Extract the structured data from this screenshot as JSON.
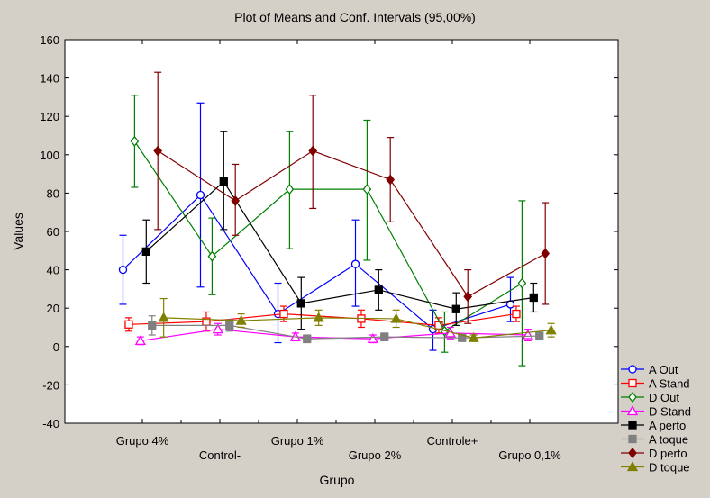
{
  "chart_data": {
    "type": "line",
    "title": "Plot of Means and Conf. Intervals (95,00%)",
    "xlabel": "Grupo",
    "ylabel": "Values",
    "ylim": [
      -40,
      160
    ],
    "yticks": [
      -40,
      -20,
      0,
      20,
      40,
      60,
      80,
      100,
      120,
      140,
      160
    ],
    "categories": [
      "Grupo 4%",
      "Control-",
      "Grupo 1%",
      "Grupo 2%",
      "Controle+",
      "Grupo 0,1%"
    ],
    "legend_position": "bottom-right",
    "grid": false,
    "series": [
      {
        "name": "A Out",
        "color": "#0000ff",
        "marker": "circle-open",
        "offset": -0.5,
        "values": [
          40,
          79,
          17,
          43,
          9,
          22
        ],
        "lower": [
          22,
          31,
          2,
          21,
          -2,
          13
        ],
        "upper": [
          58,
          127,
          33,
          66,
          19,
          36
        ]
      },
      {
        "name": "A Stand",
        "color": "#ff0000",
        "marker": "square-open",
        "offset": -0.35,
        "values": [
          11.5,
          13,
          17,
          14.5,
          11,
          17
        ],
        "lower": [
          8,
          8,
          13,
          10,
          7,
          13
        ],
        "upper": [
          15,
          18,
          21,
          19,
          15,
          21
        ]
      },
      {
        "name": "D Out",
        "color": "#008000",
        "marker": "diamond-open",
        "offset": -0.2,
        "values": [
          107,
          47,
          82,
          82,
          8,
          33
        ],
        "lower": [
          83,
          27,
          51,
          45,
          -3,
          -10
        ],
        "upper": [
          131,
          67,
          112,
          118,
          18,
          76
        ]
      },
      {
        "name": "D Stand",
        "color": "#ff00ff",
        "marker": "triangle-open",
        "offset": -0.05,
        "values": [
          3,
          9,
          5,
          4,
          7,
          6
        ],
        "lower": [
          1,
          6,
          3,
          2,
          4,
          3
        ],
        "upper": [
          5,
          12,
          7,
          6,
          10,
          9
        ]
      },
      {
        "name": "A perto",
        "color": "#000000",
        "marker": "square-filled",
        "offset": 0.1,
        "values": [
          49.5,
          86,
          22.5,
          29.5,
          19.5,
          25.5
        ],
        "lower": [
          33,
          61,
          9,
          19,
          11,
          18
        ],
        "upper": [
          66,
          112,
          36,
          40,
          28,
          33
        ]
      },
      {
        "name": "A toque",
        "color": "#808080",
        "marker": "square-filled",
        "offset": 0.25,
        "values": [
          11,
          11,
          4,
          5,
          4.5,
          5.5
        ],
        "lower": [
          6,
          8,
          2,
          3,
          3,
          4
        ],
        "upper": [
          16,
          14,
          6,
          7,
          6,
          7
        ]
      },
      {
        "name": "D perto",
        "color": "#800000",
        "marker": "diamond-filled",
        "offset": 0.4,
        "values": [
          102,
          76,
          102,
          87,
          26,
          48.5
        ],
        "lower": [
          61,
          58,
          72,
          65,
          12,
          22
        ],
        "upper": [
          143,
          95,
          131,
          109,
          40,
          75
        ]
      },
      {
        "name": "D toque",
        "color": "#808000",
        "marker": "triangle-filled",
        "offset": 0.55,
        "values": [
          15,
          13.5,
          15,
          14.5,
          4.5,
          8.5
        ],
        "lower": [
          5,
          10,
          11,
          10,
          3,
          5
        ],
        "upper": [
          25,
          17,
          19,
          19,
          6,
          12
        ]
      }
    ]
  }
}
